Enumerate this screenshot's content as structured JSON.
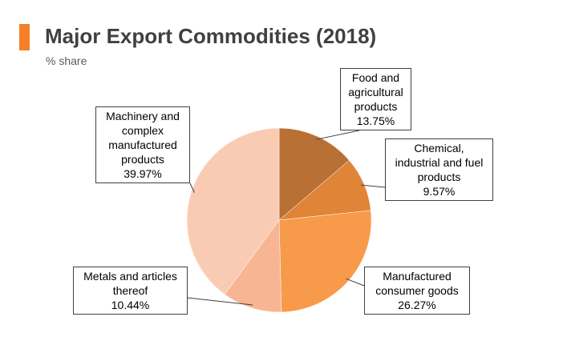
{
  "header": {
    "title": "Major Export Commodities (2018)",
    "subtitle": "% share",
    "accent_color": "#F58025"
  },
  "chart_data": {
    "type": "pie",
    "title": "Major Export Commodities (2018)",
    "subtitle": "% share",
    "unit": "%",
    "legend": "none (callout labels)",
    "slices": [
      {
        "name": "Food and agricultural products",
        "value": 13.75,
        "label": "13.75%",
        "color": "#B87035"
      },
      {
        "name": "Chemical, industrial and fuel products",
        "value": 9.57,
        "label": "9.57%",
        "color": "#E08438"
      },
      {
        "name": "Manufactured consumer goods",
        "value": 26.27,
        "label": "26.27%",
        "color": "#F79A4A"
      },
      {
        "name": "Metals and articles thereof",
        "value": 10.44,
        "label": "10.44%",
        "color": "#F8B593"
      },
      {
        "name": "Machinery and complex manufactured products",
        "value": 39.97,
        "label": "39.97%",
        "color": "#FACBB3"
      }
    ],
    "callout_lines": [
      [
        "Food and",
        "agricultural",
        "products",
        "13.75%"
      ],
      [
        "Chemical,",
        "industrial and fuel",
        "products",
        "9.57%"
      ],
      [
        "Manufactured",
        "consumer goods",
        "26.27%"
      ],
      [
        "Metals and articles",
        "thereof",
        "10.44%"
      ],
      [
        "Machinery and",
        "complex",
        "manufactured",
        "products",
        "39.97%"
      ]
    ]
  }
}
